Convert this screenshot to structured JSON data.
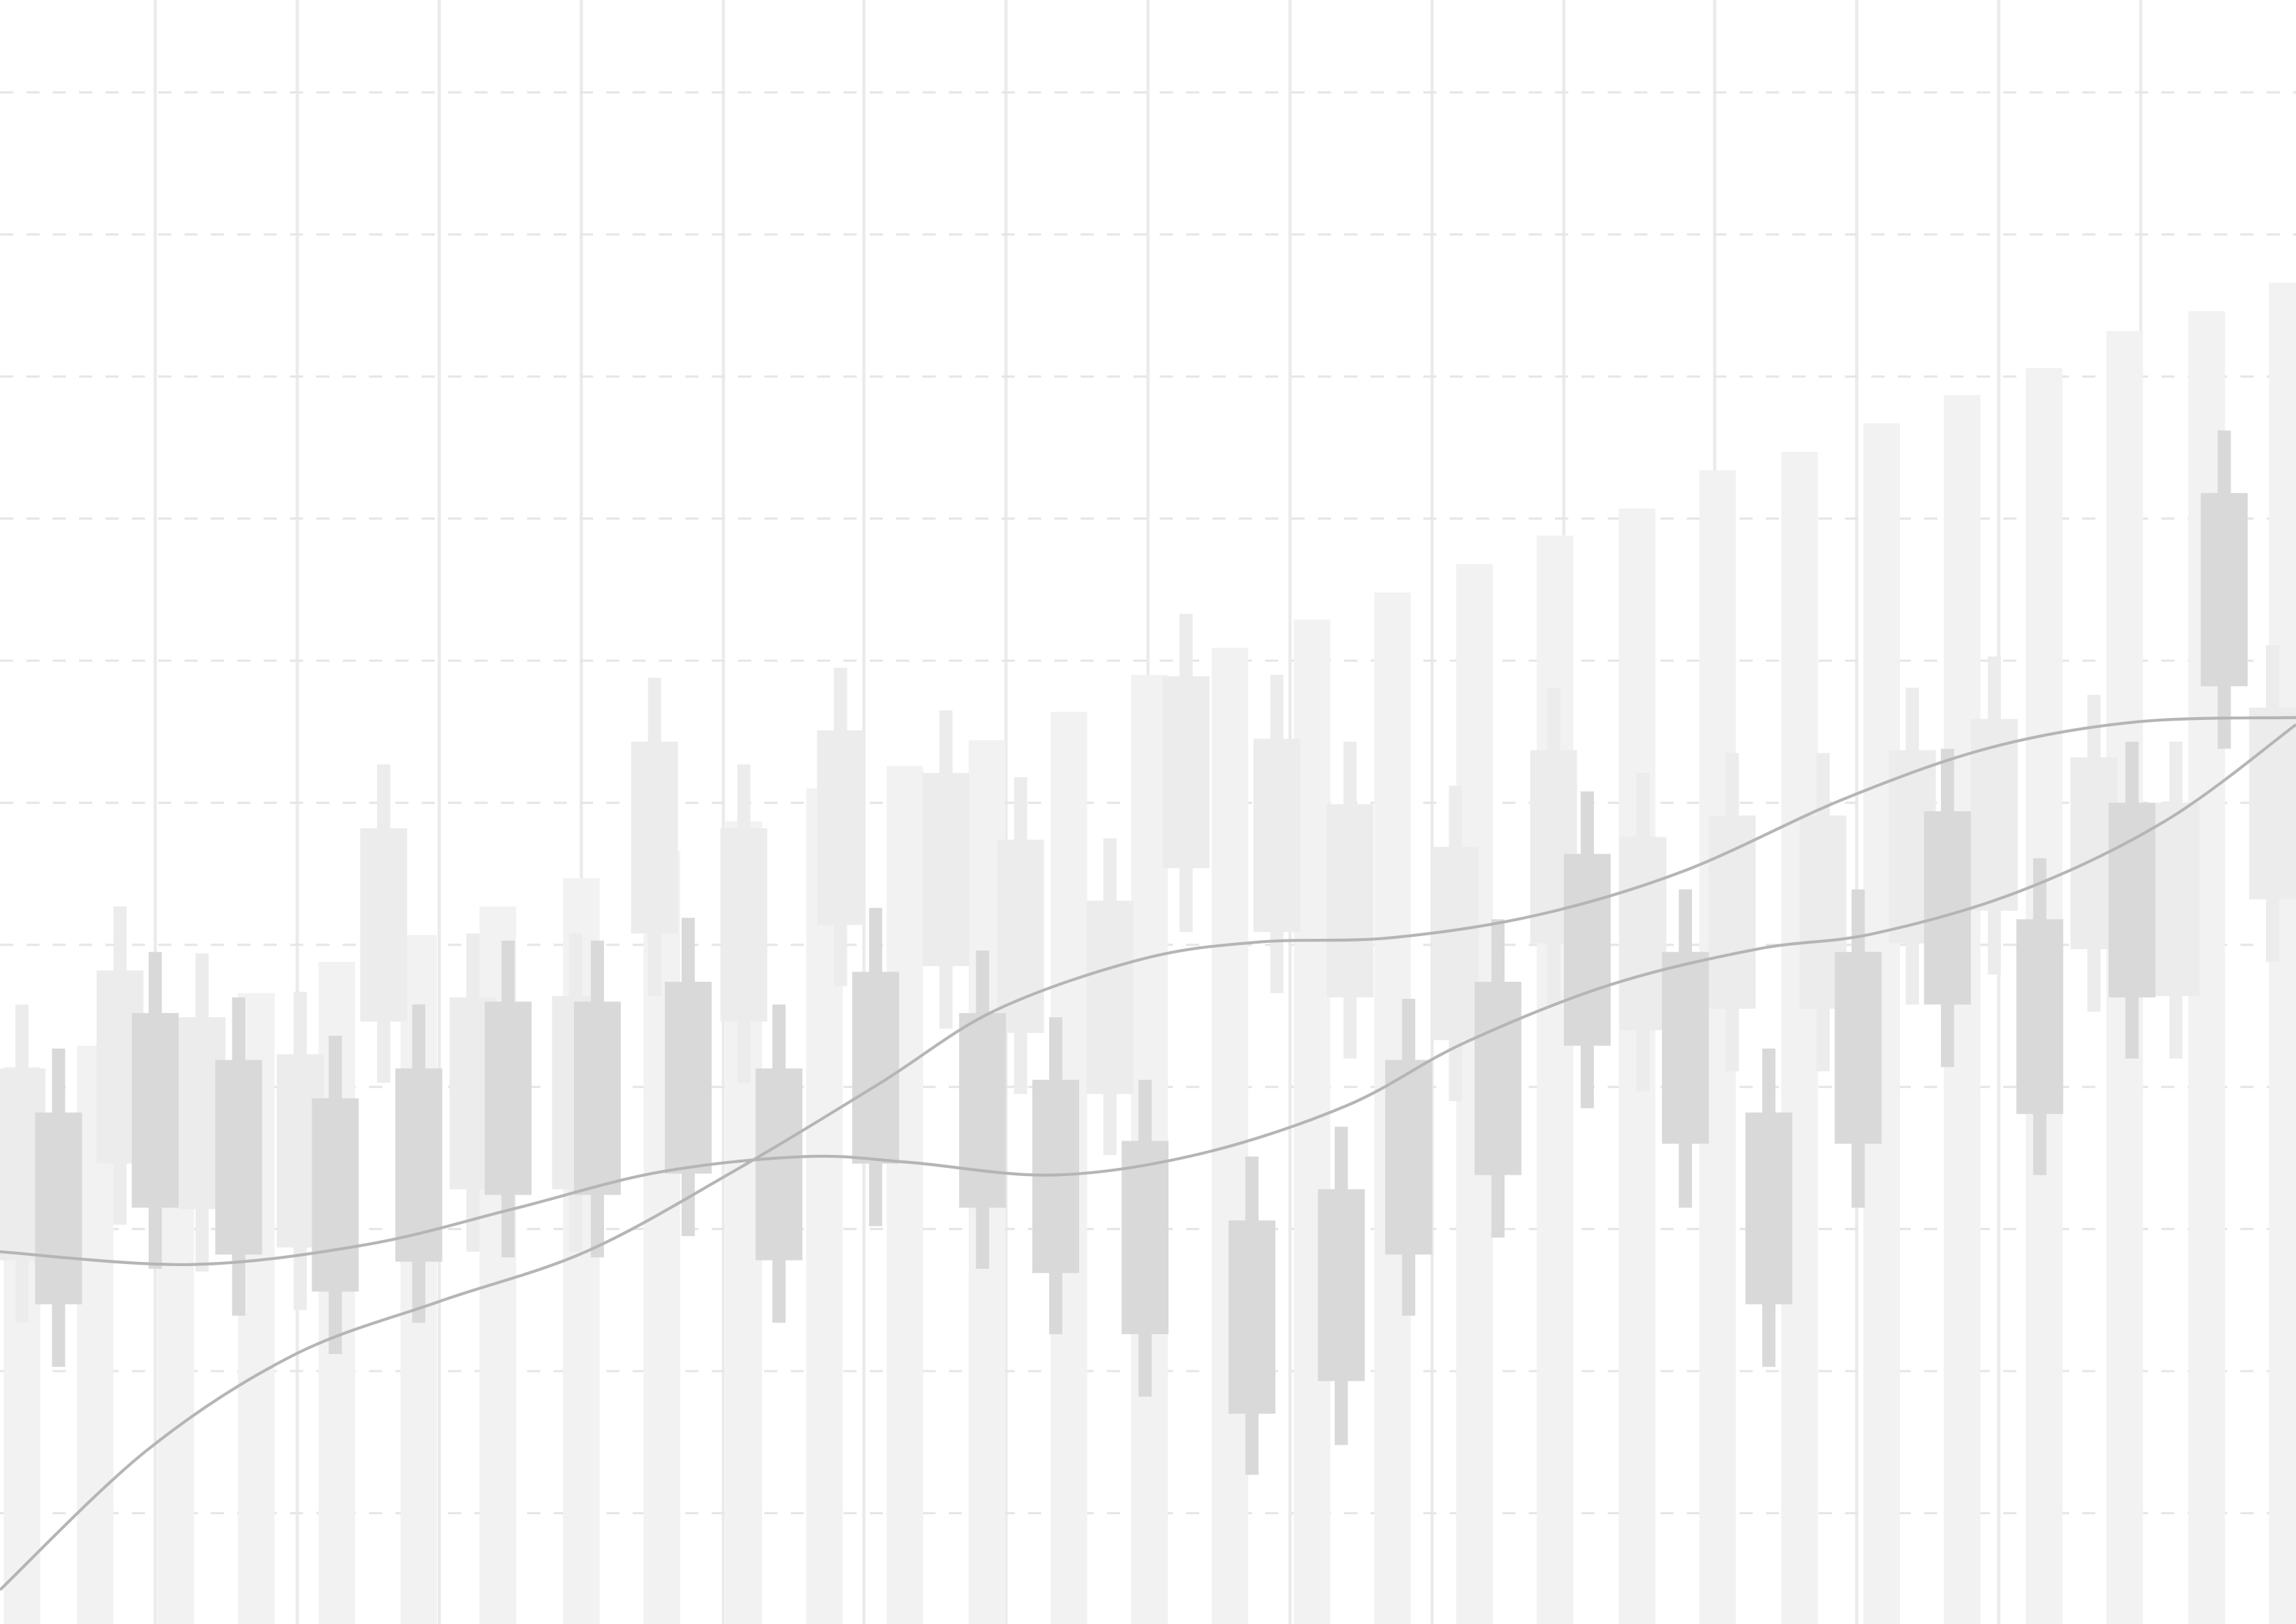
{
  "chart_data": [
    {
      "type": "bar",
      "grid": true,
      "color": "#f2f2f2",
      "grid_color": "#e6e6e6",
      "xlim": [
        0,
        1568
      ],
      "ylim": [
        -7.8,
        106.5
      ],
      "xticks": [
        106,
        203,
        300,
        397,
        494,
        590,
        687,
        784,
        881,
        978,
        1068,
        1171,
        1268,
        1365,
        1462
      ],
      "yticks": [
        0,
        10,
        20,
        30,
        40,
        50,
        60,
        70,
        80,
        90,
        100
      ],
      "x": [
        15,
        65,
        120,
        175,
        230,
        286,
        340,
        397,
        452,
        508,
        563,
        618,
        674,
        730,
        785,
        840,
        896,
        951,
        1007,
        1062,
        1118,
        1173,
        1229,
        1285,
        1340,
        1396,
        1451,
        1507,
        1562
      ],
      "values": [
        31.4,
        32.9,
        34.9,
        36.6,
        38.8,
        40.7,
        42.7,
        44.7,
        46.6,
        48.7,
        51.0,
        52.6,
        54.4,
        56.4,
        59.0,
        60.9,
        62.9,
        64.8,
        66.8,
        68.8,
        70.7,
        73.4,
        74.7,
        76.7,
        78.7,
        80.6,
        83.2,
        84.6,
        86.6
      ]
    },
    {
      "type": "candlestick",
      "color": "#ececec",
      "xlim": [
        0,
        1568
      ],
      "ylim": [
        -7.8,
        106.5
      ],
      "x": [
        15,
        82,
        138,
        205,
        262,
        323,
        393,
        447,
        508,
        574,
        646,
        697,
        758,
        810,
        872,
        922,
        994,
        1061,
        1122,
        1183,
        1245,
        1306,
        1362,
        1430,
        1486,
        1552
      ],
      "high": [
        35.8,
        42.7,
        39.4,
        36.7,
        52.7,
        40.8,
        40.8,
        58.8,
        52.7,
        59.5,
        56.5,
        51.8,
        47.5,
        63.3,
        59.0,
        54.3,
        51.2,
        58.1,
        52.1,
        53.5,
        53.5,
        58.1,
        60.3,
        57.6,
        54.3,
        61.1
      ],
      "close": [
        31.3,
        38.2,
        34.9,
        32.3,
        48.2,
        36.3,
        36.4,
        54.3,
        48.2,
        55.1,
        52.1,
        47.4,
        43.1,
        58.9,
        54.5,
        49.9,
        46.9,
        53.7,
        47.6,
        49.1,
        49.1,
        53.7,
        55.9,
        53.2,
        50.0,
        56.7
      ],
      "open": [
        17.8,
        24.6,
        21.4,
        18.7,
        34.6,
        22.8,
        22.8,
        40.8,
        34.6,
        41.4,
        38.5,
        33.8,
        29.5,
        45.4,
        40.9,
        36.3,
        33.3,
        40.1,
        34.0,
        35.5,
        35.5,
        40.1,
        42.4,
        39.7,
        36.4,
        43.2
      ],
      "low": [
        13.4,
        20.3,
        17.0,
        14.3,
        30.3,
        18.4,
        18.4,
        36.4,
        30.3,
        37.1,
        34.1,
        29.5,
        25.2,
        40.9,
        36.6,
        32.0,
        29.0,
        35.8,
        29.7,
        31.1,
        31.1,
        35.8,
        37.9,
        35.3,
        32.0,
        38.8
      ]
    },
    {
      "type": "candlestick",
      "color": "#d9d9d9",
      "xlim": [
        0,
        1568
      ],
      "ylim": [
        -7.8,
        106.5
      ],
      "x": [
        40,
        106,
        163,
        229,
        286,
        347,
        408,
        470,
        532,
        598,
        671,
        721,
        782,
        855,
        916,
        962,
        1023,
        1084,
        1151,
        1208,
        1269,
        1330,
        1393,
        1456,
        1519
      ],
      "high": [
        32.7,
        39.5,
        36.3,
        33.6,
        35.8,
        40.3,
        40.3,
        41.9,
        35.8,
        42.6,
        39.6,
        34.9,
        30.5,
        25.1,
        27.2,
        36.2,
        41.8,
        50.8,
        43.9,
        32.7,
        43.9,
        53.8,
        46.1,
        54.3,
        76.2
      ],
      "close": [
        28.2,
        35.2,
        31.9,
        29.2,
        31.3,
        36.0,
        36.0,
        37.4,
        31.3,
        38.1,
        35.2,
        30.5,
        26.2,
        20.6,
        22.8,
        31.9,
        37.4,
        46.4,
        39.5,
        28.2,
        39.5,
        49.4,
        41.8,
        50.0,
        71.8
      ],
      "open": [
        14.7,
        21.5,
        18.2,
        15.6,
        17.7,
        22.4,
        22.4,
        23.9,
        17.8,
        24.6,
        21.5,
        16.9,
        12.6,
        7.0,
        9.3,
        18.2,
        23.8,
        32.9,
        26.0,
        14.7,
        26.0,
        35.8,
        28.1,
        36.3,
        58.2
      ],
      "low": [
        10.3,
        17.2,
        13.9,
        11.2,
        13.4,
        18.0,
        18.0,
        19.5,
        13.4,
        20.2,
        17.2,
        12.6,
        8.2,
        2.7,
        4.8,
        13.9,
        19.4,
        28.5,
        21.5,
        10.3,
        21.5,
        31.4,
        23.8,
        32.0,
        53.8
      ]
    },
    {
      "type": "line",
      "xlim": [
        0,
        1568
      ],
      "ylim": [
        -7.8,
        106.5
      ],
      "series": [
        {
          "color": "#b5b5b5",
          "x": [
            0,
            100,
            200,
            300,
            400,
            500,
            600,
            680,
            780,
            860,
            950,
            1050,
            1150,
            1260,
            1360,
            1460,
            1568
          ],
          "values": [
            -5.4,
            4.4,
            11.1,
            14.9,
            18.4,
            24.0,
            30.2,
            35.4,
            39.0,
            40.2,
            40.5,
            42.1,
            45.2,
            50.3,
            53.9,
            55.7,
            56.0
          ]
        },
        {
          "color": "#b5b5b5",
          "x": [
            0,
            130,
            250,
            350,
            450,
            550,
            620,
            720,
            820,
            920,
            1000,
            1100,
            1200,
            1280,
            1380,
            1480,
            1568
          ],
          "values": [
            18.4,
            17.5,
            18.9,
            21.4,
            24.0,
            25.1,
            24.7,
            23.8,
            25.3,
            28.7,
            33.1,
            37.2,
            39.7,
            40.8,
            43.8,
            48.8,
            55.5
          ]
        }
      ]
    }
  ]
}
